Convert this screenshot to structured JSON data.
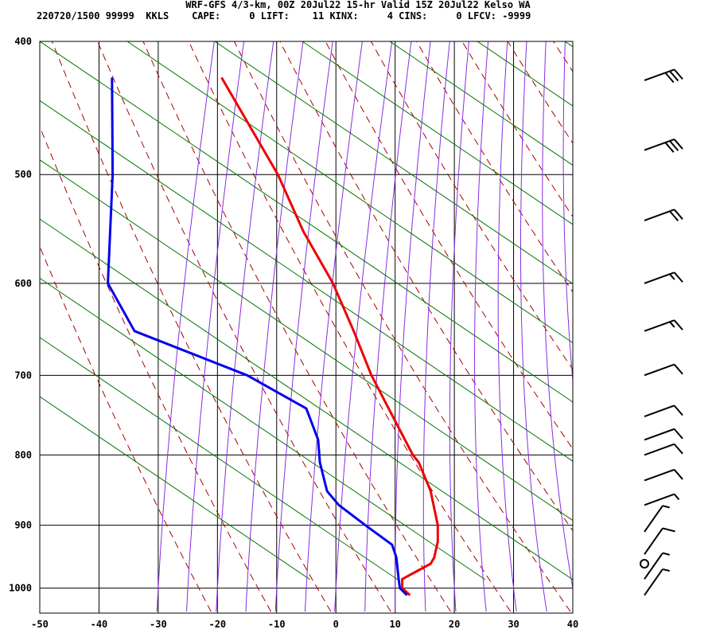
{
  "header": {
    "line1": "WRF-GFS 4/3-km, 00Z 20Jul22 15-hr Valid 15Z 20Jul22 Kelso WA",
    "line2": "220720/1500 99999  KKLS    CAPE:     0 LIFT:    11 KINX:     4 CINS:     0 LFCV: -9999"
  },
  "colors": {
    "temperature": "#ee0000",
    "dewpoint": "#0000ee",
    "isotherm_grid": "#000000",
    "dry_adiabat": "#aa0000",
    "moist_adiabat": "#8a2be2",
    "mixing_ratio": "#007700"
  },
  "chart_data": {
    "type": "line",
    "subtype": "skew-T log-P",
    "xlim": [
      -50,
      40
    ],
    "pressure_range": [
      1040,
      400
    ],
    "x_ticks": [
      -50,
      -40,
      -30,
      -20,
      -10,
      0,
      10,
      20,
      30,
      40
    ],
    "p_ticks": [
      400,
      500,
      600,
      700,
      800,
      900,
      1000
    ],
    "p_log_scale": true,
    "grid": true,
    "series": [
      {
        "key": "temperature",
        "points": [
          {
            "p": 1012,
            "x": 12.5
          },
          {
            "p": 1000,
            "x": 11.2
          },
          {
            "p": 985,
            "x": 11.2
          },
          {
            "p": 960,
            "x": 16.0
          },
          {
            "p": 950,
            "x": 16.6
          },
          {
            "p": 925,
            "x": 17.2
          },
          {
            "p": 900,
            "x": 17.2
          },
          {
            "p": 850,
            "x": 16.0
          },
          {
            "p": 810,
            "x": 14.0
          },
          {
            "p": 800,
            "x": 13.0
          },
          {
            "p": 750,
            "x": 9.6
          },
          {
            "p": 700,
            "x": 6.0
          },
          {
            "p": 650,
            "x": 3.0
          },
          {
            "p": 600,
            "x": -0.5
          },
          {
            "p": 550,
            "x": -5.5
          },
          {
            "p": 500,
            "x": -9.8
          },
          {
            "p": 425,
            "x": -19.3
          }
        ]
      },
      {
        "key": "dewpoint",
        "points": [
          {
            "p": 1012,
            "x": 12.0
          },
          {
            "p": 1000,
            "x": 10.8
          },
          {
            "p": 985,
            "x": 10.6
          },
          {
            "p": 950,
            "x": 10.2
          },
          {
            "p": 930,
            "x": 9.5
          },
          {
            "p": 900,
            "x": 5.0
          },
          {
            "p": 870,
            "x": 0.5
          },
          {
            "p": 850,
            "x": -1.5
          },
          {
            "p": 810,
            "x": -2.7
          },
          {
            "p": 780,
            "x": -3.0
          },
          {
            "p": 740,
            "x": -5.0
          },
          {
            "p": 700,
            "x": -15.0
          },
          {
            "p": 650,
            "x": -34.0
          },
          {
            "p": 600,
            "x": -38.5
          },
          {
            "p": 500,
            "x": -37.7
          },
          {
            "p": 425,
            "x": -37.8
          }
        ]
      }
    ],
    "wind_barbs": [
      {
        "p": 427,
        "speed_kt": 30
      },
      {
        "p": 480,
        "speed_kt": 30
      },
      {
        "p": 540,
        "speed_kt": 20
      },
      {
        "p": 600,
        "speed_kt": 15
      },
      {
        "p": 650,
        "speed_kt": 15
      },
      {
        "p": 700,
        "speed_kt": 10
      },
      {
        "p": 750,
        "speed_kt": 10
      },
      {
        "p": 780,
        "speed_kt": 10
      },
      {
        "p": 800,
        "speed_kt": 10
      },
      {
        "p": 835,
        "speed_kt": 10
      },
      {
        "p": 870,
        "speed_kt": 5
      },
      {
        "p": 910,
        "speed_kt": 5
      },
      {
        "p": 945,
        "speed_kt": 10
      },
      {
        "p": 960,
        "speed_kt": 0
      },
      {
        "p": 985,
        "speed_kt": 5
      },
      {
        "p": 1012,
        "speed_kt": 5
      }
    ]
  }
}
